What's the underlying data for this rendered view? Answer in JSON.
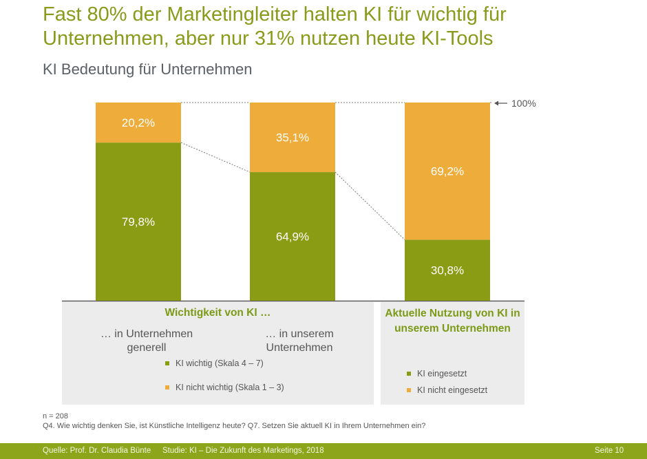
{
  "headline": "Fast 80% der Marketingleiter halten KI für wichtig für Unternehmen, aber nur 31% nutzen heute KI-Tools",
  "subtitle": "KI Bedeutung für Unternehmen",
  "colors": {
    "green": "#8a9b14",
    "orange": "#eeac3a",
    "title_green": "#8a9a1a",
    "footer": "#8ca51b"
  },
  "chart_data": {
    "type": "bar",
    "stacked": true,
    "categories": [
      "… in Unternehmen generell",
      "… in unserem Unternehmen",
      "Aktuelle Nutzung von KI in unserem Unternehmen"
    ],
    "series": [
      {
        "name": "KI wichtig (Skala 4 – 7)",
        "values": [
          79.8,
          64.9,
          30.8
        ],
        "labels": [
          "79,8%",
          "64,9%",
          "30,8%"
        ]
      },
      {
        "name": "KI nicht wichtig (Skala 1 – 3)",
        "values": [
          20.2,
          35.1,
          69.2
        ],
        "labels": [
          "20,2%",
          "35,1%",
          "69,2%"
        ]
      }
    ],
    "ylim": [
      0,
      100
    ],
    "reference_label": "100%",
    "grid": false
  },
  "panels": {
    "left_title": "Wichtigkeit von KI …",
    "cat1": "… in Unternehmen generell",
    "cat2": "… in unserem Unternehmen",
    "right_title": "Aktuelle Nutzung von KI in unserem Unternehmen"
  },
  "legend_left": [
    "KI wichtig (Skala 4 – 7)",
    "KI nicht wichtig (Skala 1 – 3)"
  ],
  "legend_right": [
    "KI eingesetzt",
    "KI nicht eingesetzt"
  ],
  "notes": {
    "n": "n = 208",
    "question": "Q4. Wie wichtig denken Sie, ist Künstliche Intelligenz heute? Q7. Setzen Sie aktuell KI in Ihrem Unternehmen ein?"
  },
  "footer": {
    "source": "Quelle: Prof. Dr. Claudia Bünte",
    "study": "Studie: KI – Die Zukunft des Marketings, 2018",
    "page": "Seite 10"
  }
}
